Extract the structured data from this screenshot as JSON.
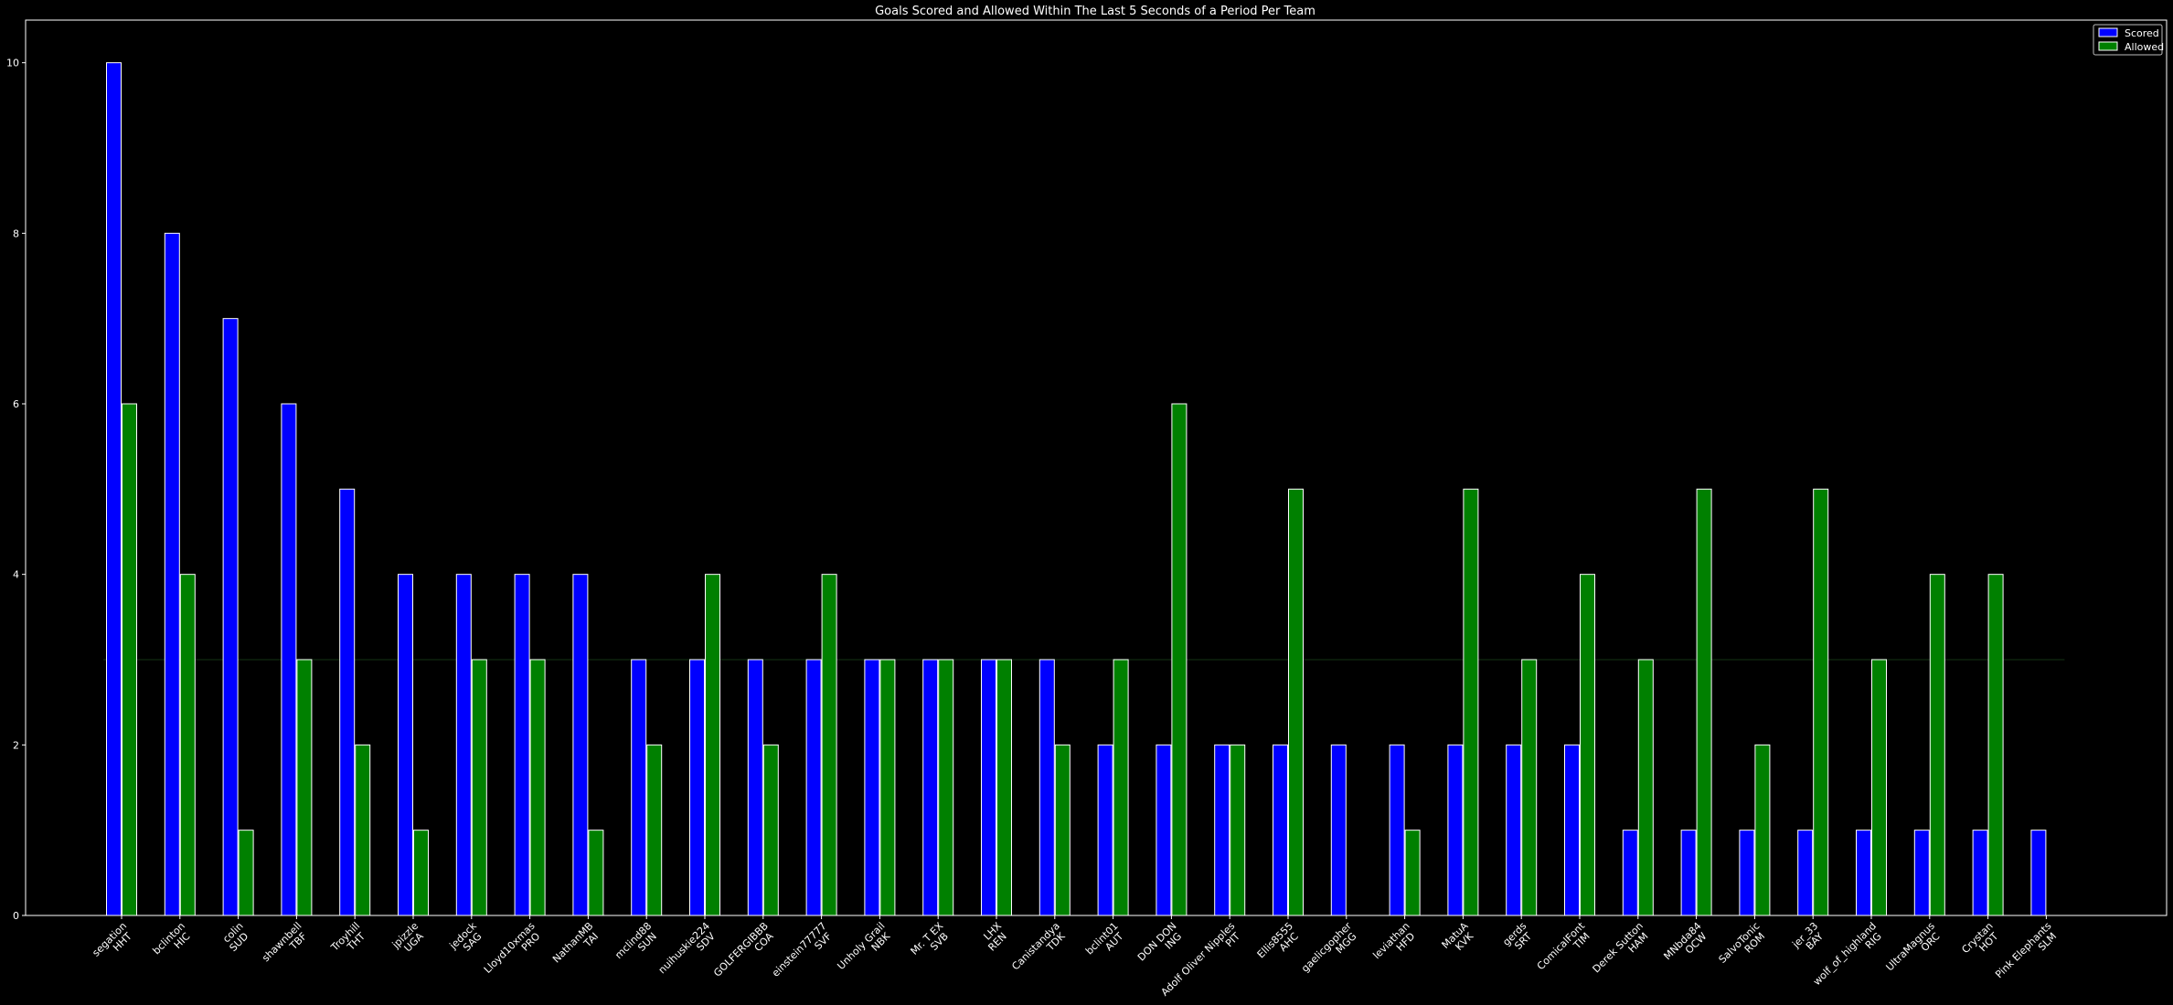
{
  "chart_data": {
    "type": "bar",
    "title": "Goals Scored and Allowed Within The Last 5 Seconds of a Period Per Team",
    "xlabel": "",
    "ylabel": "",
    "ylim": [
      0,
      10.5
    ],
    "yticks": [
      0,
      2,
      4,
      6,
      8,
      10
    ],
    "grid": false,
    "legend_position": "top-right",
    "categories": [
      [
        "segation",
        "HHT"
      ],
      [
        "bclinton",
        "HIC"
      ],
      [
        "colin",
        "SUD"
      ],
      [
        "shawnbell",
        "TBF"
      ],
      [
        "Troyhill",
        "THT"
      ],
      [
        "jpizzle",
        "UGA"
      ],
      [
        "jedock",
        "SAG"
      ],
      [
        "Lloyd10xmas",
        "PRO"
      ],
      [
        "NathanMB",
        "TAI"
      ],
      [
        "mclind88",
        "SUN"
      ],
      [
        "nuihuskie224",
        "SDV"
      ],
      [
        "GOLFERGIBBB",
        "COA"
      ],
      [
        "einstein77777",
        "SVF"
      ],
      [
        "Unholy Grail",
        "NBK"
      ],
      [
        "Mr. T EX",
        "SVB"
      ],
      [
        "LHX",
        "REN"
      ],
      [
        "Canistandya",
        "TDK"
      ],
      [
        "bclint01",
        "AUT"
      ],
      [
        "DON DON",
        "ING"
      ],
      [
        "Adolf Oliver Nipples",
        "PIT"
      ],
      [
        "Ellis8555",
        "AHC"
      ],
      [
        "gaelicgopher",
        "MGG"
      ],
      [
        "leviathan",
        "HFD"
      ],
      [
        "MatuA",
        "KVK"
      ],
      [
        "gerds",
        "SRT"
      ],
      [
        "ComicalFont",
        "TIM"
      ],
      [
        "Derek Sutton",
        "HAM"
      ],
      [
        "MNbda84",
        "OCW"
      ],
      [
        "SalvoTonic",
        "ROM"
      ],
      [
        "jer_33",
        "BAY"
      ],
      [
        "wolf_of_highland",
        "RIG"
      ],
      [
        "UltraMagnus",
        "ORC"
      ],
      [
        "Crystan",
        "HOT"
      ],
      [
        "Pink Elephants",
        "SLM"
      ]
    ],
    "series": [
      {
        "name": "Scored",
        "color": "#0000ff",
        "values": [
          10,
          8,
          7,
          6,
          5,
          4,
          4,
          4,
          4,
          3,
          3,
          3,
          3,
          3,
          3,
          3,
          3,
          2,
          2,
          2,
          2,
          2,
          2,
          2,
          2,
          2,
          1,
          1,
          1,
          1,
          1,
          1,
          1,
          1
        ]
      },
      {
        "name": "Allowed",
        "color": "#008000",
        "values": [
          6,
          4,
          1,
          3,
          2,
          1,
          3,
          3,
          1,
          2,
          4,
          2,
          4,
          3,
          3,
          3,
          2,
          3,
          6,
          2,
          5,
          0,
          1,
          5,
          3,
          4,
          3,
          5,
          2,
          5,
          3,
          4,
          4,
          0
        ]
      }
    ],
    "reference_line": {
      "y": 3,
      "color": "#0a1a0a"
    }
  },
  "colors": {
    "background": "#000000",
    "axis": "#ffffff",
    "bar_edge": "#ffffff"
  }
}
